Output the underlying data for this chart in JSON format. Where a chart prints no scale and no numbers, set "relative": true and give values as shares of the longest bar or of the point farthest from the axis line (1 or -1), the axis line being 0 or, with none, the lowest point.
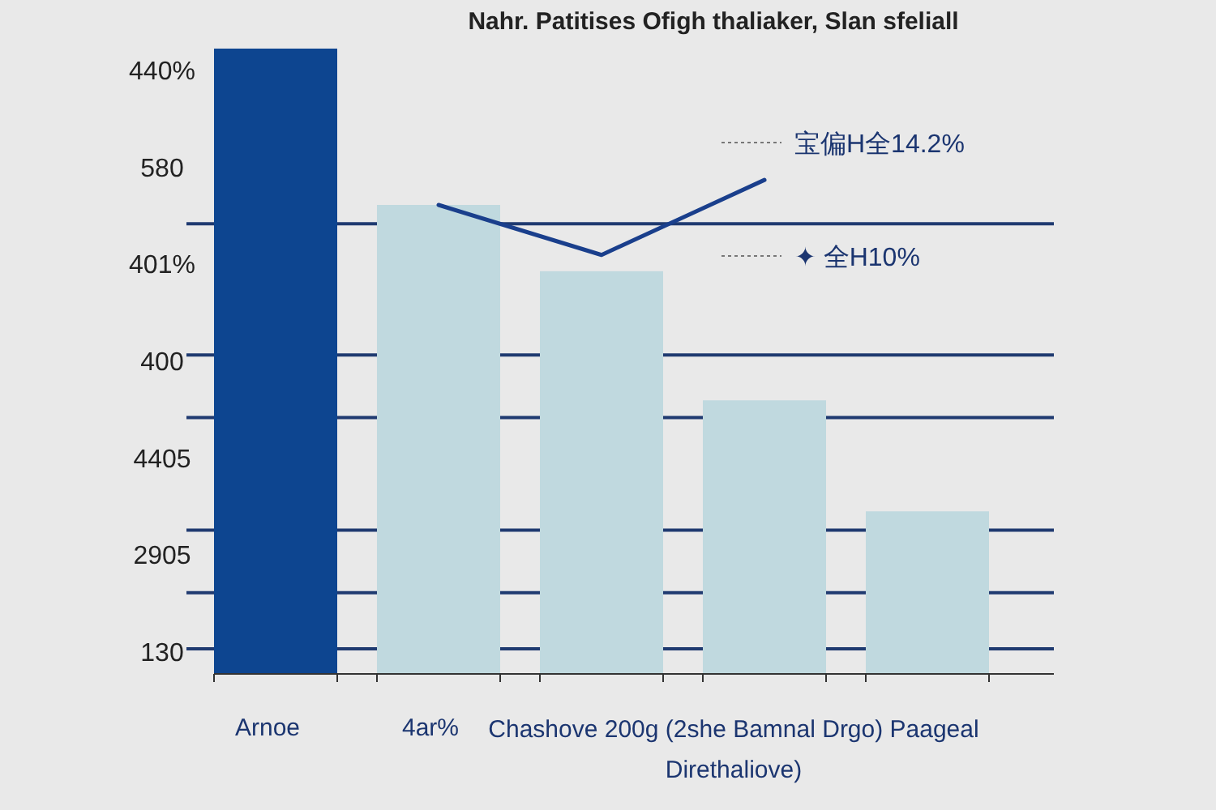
{
  "chart_data": {
    "type": "bar",
    "relative": true,
    "title": "Nahr. Patitises Ofigh thaliaker, Slan sfeliall",
    "categories": [
      "Arnoe",
      "4ar%",
      null,
      null,
      null
    ],
    "xlabel": "Chashove 200g (2she Bamnal Drgo) Paageal Direthaliove)",
    "values": [
      1,
      0.75,
      0.644,
      0.4375,
      0.26
    ],
    "colors": [
      "#0d4590",
      "#c0d9df",
      "#c0d9df",
      "#c0d9df",
      "#c0d9df"
    ],
    "series": [
      {
        "type": "line",
        "color": "#1a3f8c",
        "values": [
          null,
          0.75,
          0.67,
          0.79,
          null
        ]
      }
    ],
    "ref_lines": [
      {
        "axis": "y",
        "value": 0.72,
        "color": "#1f3a70"
      },
      {
        "axis": "y",
        "value": 0.51,
        "color": "#1f3a70"
      },
      {
        "axis": "y",
        "value": 0.41,
        "color": "#1f3a70"
      },
      {
        "axis": "y",
        "value": 0.23,
        "color": "#1f3a70"
      },
      {
        "axis": "y",
        "value": 0.13,
        "color": "#1f3a70"
      },
      {
        "axis": "y",
        "value": 0.04,
        "color": "#1f3a70"
      }
    ],
    "annotations": [
      "440%",
      "580",
      "401%",
      "400",
      "4405",
      "2905",
      "130",
      "宝偏H全14.2%",
      "✦ 全H10%"
    ]
  }
}
